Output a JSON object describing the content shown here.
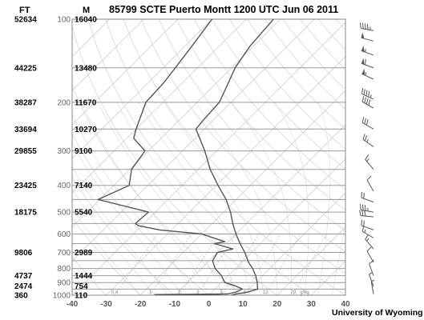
{
  "header": {
    "ft_label": "FT",
    "m_label": "M",
    "title": "85799 SCTE Puerto Montt 1200 UTC Jun 06 2011"
  },
  "credit": "University of Wyoming",
  "chart_data": {
    "type": "line",
    "title": "85799 SCTE Puerto Montt 1200 UTC Jun 06 2011",
    "xlabel": "",
    "ylabel": "",
    "x_axis": {
      "name": "Temperature",
      "unit": "°C",
      "range": [
        -40,
        40
      ],
      "ticks": [
        -40,
        -30,
        -20,
        -10,
        0,
        10,
        20,
        30,
        40
      ],
      "skew_deg": 45
    },
    "y_axis": {
      "name": "Pressure",
      "unit": "hPa",
      "scale": "log",
      "range": [
        1000,
        100
      ],
      "inverted": true,
      "ticks": [
        100,
        200,
        300,
        400,
        500,
        600,
        700,
        800,
        900,
        1000
      ]
    },
    "height_levels": [
      {
        "ft": "52634",
        "m": "16040",
        "p": 100
      },
      {
        "ft": "44225",
        "m": "13480",
        "p": 150
      },
      {
        "ft": "38287",
        "m": "11670",
        "p": 200
      },
      {
        "ft": "33694",
        "m": "10270",
        "p": 250
      },
      {
        "ft": "29855",
        "m": "9100",
        "p": 300
      },
      {
        "ft": "23425",
        "m": "7140",
        "p": 400
      },
      {
        "ft": "18175",
        "m": "5540",
        "p": 500
      },
      {
        "ft": "9806",
        "m": "2989",
        "p": 700
      },
      {
        "ft": "4737",
        "m": "1444",
        "p": 850
      },
      {
        "ft": "2474",
        "m": "754",
        "p": 925
      },
      {
        "ft": "360",
        "m": "110",
        "p": 1000
      }
    ],
    "mixing_ratio_labels": [
      "0.4",
      "1",
      "2",
      "3",
      "5",
      "8",
      "12",
      "20",
      "g/kg"
    ],
    "mixing_ratio_values": [
      0.4,
      1,
      2,
      3,
      5,
      8,
      12,
      20
    ],
    "series": [
      {
        "name": "Temperature",
        "points": [
          {
            "p": 1000,
            "t": 6.5
          },
          {
            "p": 990,
            "t": 7.5
          },
          {
            "p": 975,
            "t": 10.5
          },
          {
            "p": 950,
            "t": 12.5
          },
          {
            "p": 925,
            "t": 11.5
          },
          {
            "p": 900,
            "t": 10.5
          },
          {
            "p": 850,
            "t": 8.0
          },
          {
            "p": 800,
            "t": 5.0
          },
          {
            "p": 760,
            "t": 2.0
          },
          {
            "p": 700,
            "t": -2.0
          },
          {
            "p": 650,
            "t": -6.0
          },
          {
            "p": 600,
            "t": -10.0
          },
          {
            "p": 550,
            "t": -14.0
          },
          {
            "p": 500,
            "t": -18.0
          },
          {
            "p": 450,
            "t": -23.0
          },
          {
            "p": 400,
            "t": -29.5
          },
          {
            "p": 350,
            "t": -36.5
          },
          {
            "p": 300,
            "t": -43.5
          },
          {
            "p": 250,
            "t": -52.5
          },
          {
            "p": 230,
            "t": -53.0
          },
          {
            "p": 200,
            "t": -53.5
          },
          {
            "p": 175,
            "t": -56.0
          },
          {
            "p": 150,
            "t": -59.0
          },
          {
            "p": 125,
            "t": -61.0
          },
          {
            "p": 100,
            "t": -62.0
          }
        ]
      },
      {
        "name": "Dew point",
        "points": [
          {
            "p": 1000,
            "t": 3.5
          },
          {
            "p": 995,
            "t": -16.0
          },
          {
            "p": 990,
            "t": 5.0
          },
          {
            "p": 975,
            "t": 7.0
          },
          {
            "p": 950,
            "t": 8.0
          },
          {
            "p": 925,
            "t": 5.0
          },
          {
            "p": 900,
            "t": 1.0
          },
          {
            "p": 850,
            "t": -2.0
          },
          {
            "p": 800,
            "t": -6.0
          },
          {
            "p": 750,
            "t": -9.0
          },
          {
            "p": 700,
            "t": -10.0
          },
          {
            "p": 680,
            "t": -6.5
          },
          {
            "p": 650,
            "t": -13.5
          },
          {
            "p": 640,
            "t": -11.0
          },
          {
            "p": 600,
            "t": -20.0
          },
          {
            "p": 580,
            "t": -33.5
          },
          {
            "p": 560,
            "t": -41.0
          },
          {
            "p": 550,
            "t": -42.5
          },
          {
            "p": 500,
            "t": -42.0
          },
          {
            "p": 450,
            "t": -60.5
          },
          {
            "p": 400,
            "t": -55.5
          },
          {
            "p": 350,
            "t": -59.5
          },
          {
            "p": 300,
            "t": -61.0
          },
          {
            "p": 270,
            "t": -68.0
          },
          {
            "p": 250,
            "t": -70.0
          },
          {
            "p": 200,
            "t": -75.0
          },
          {
            "p": 170,
            "t": -75.5
          },
          {
            "p": 150,
            "t": -76.5
          },
          {
            "p": 125,
            "t": -78.0
          },
          {
            "p": 100,
            "t": -80.0
          }
        ]
      }
    ],
    "wind_barbs": [
      {
        "p": 110,
        "dir": 280,
        "spd": 45
      },
      {
        "p": 120,
        "dir": 285,
        "spd": 50
      },
      {
        "p": 135,
        "dir": 290,
        "spd": 55
      },
      {
        "p": 150,
        "dir": 290,
        "spd": 60
      },
      {
        "p": 165,
        "dir": 295,
        "spd": 55
      },
      {
        "p": 195,
        "dir": 295,
        "spd": 45
      },
      {
        "p": 210,
        "dir": 300,
        "spd": 40
      },
      {
        "p": 250,
        "dir": 300,
        "spd": 30
      },
      {
        "p": 290,
        "dir": 305,
        "spd": 25
      },
      {
        "p": 350,
        "dir": 320,
        "spd": 15
      },
      {
        "p": 420,
        "dir": 330,
        "spd": 10
      },
      {
        "p": 460,
        "dir": 290,
        "spd": 20
      },
      {
        "p": 500,
        "dir": 280,
        "spd": 35
      },
      {
        "p": 520,
        "dir": 275,
        "spd": 30
      },
      {
        "p": 580,
        "dir": 290,
        "spd": 20
      },
      {
        "p": 620,
        "dir": 300,
        "spd": 15
      },
      {
        "p": 680,
        "dir": 320,
        "spd": 15
      },
      {
        "p": 760,
        "dir": 330,
        "spd": 10
      },
      {
        "p": 850,
        "dir": 340,
        "spd": 10
      },
      {
        "p": 930,
        "dir": 340,
        "spd": 5
      },
      {
        "p": 990,
        "dir": 350,
        "spd": 5
      }
    ]
  }
}
